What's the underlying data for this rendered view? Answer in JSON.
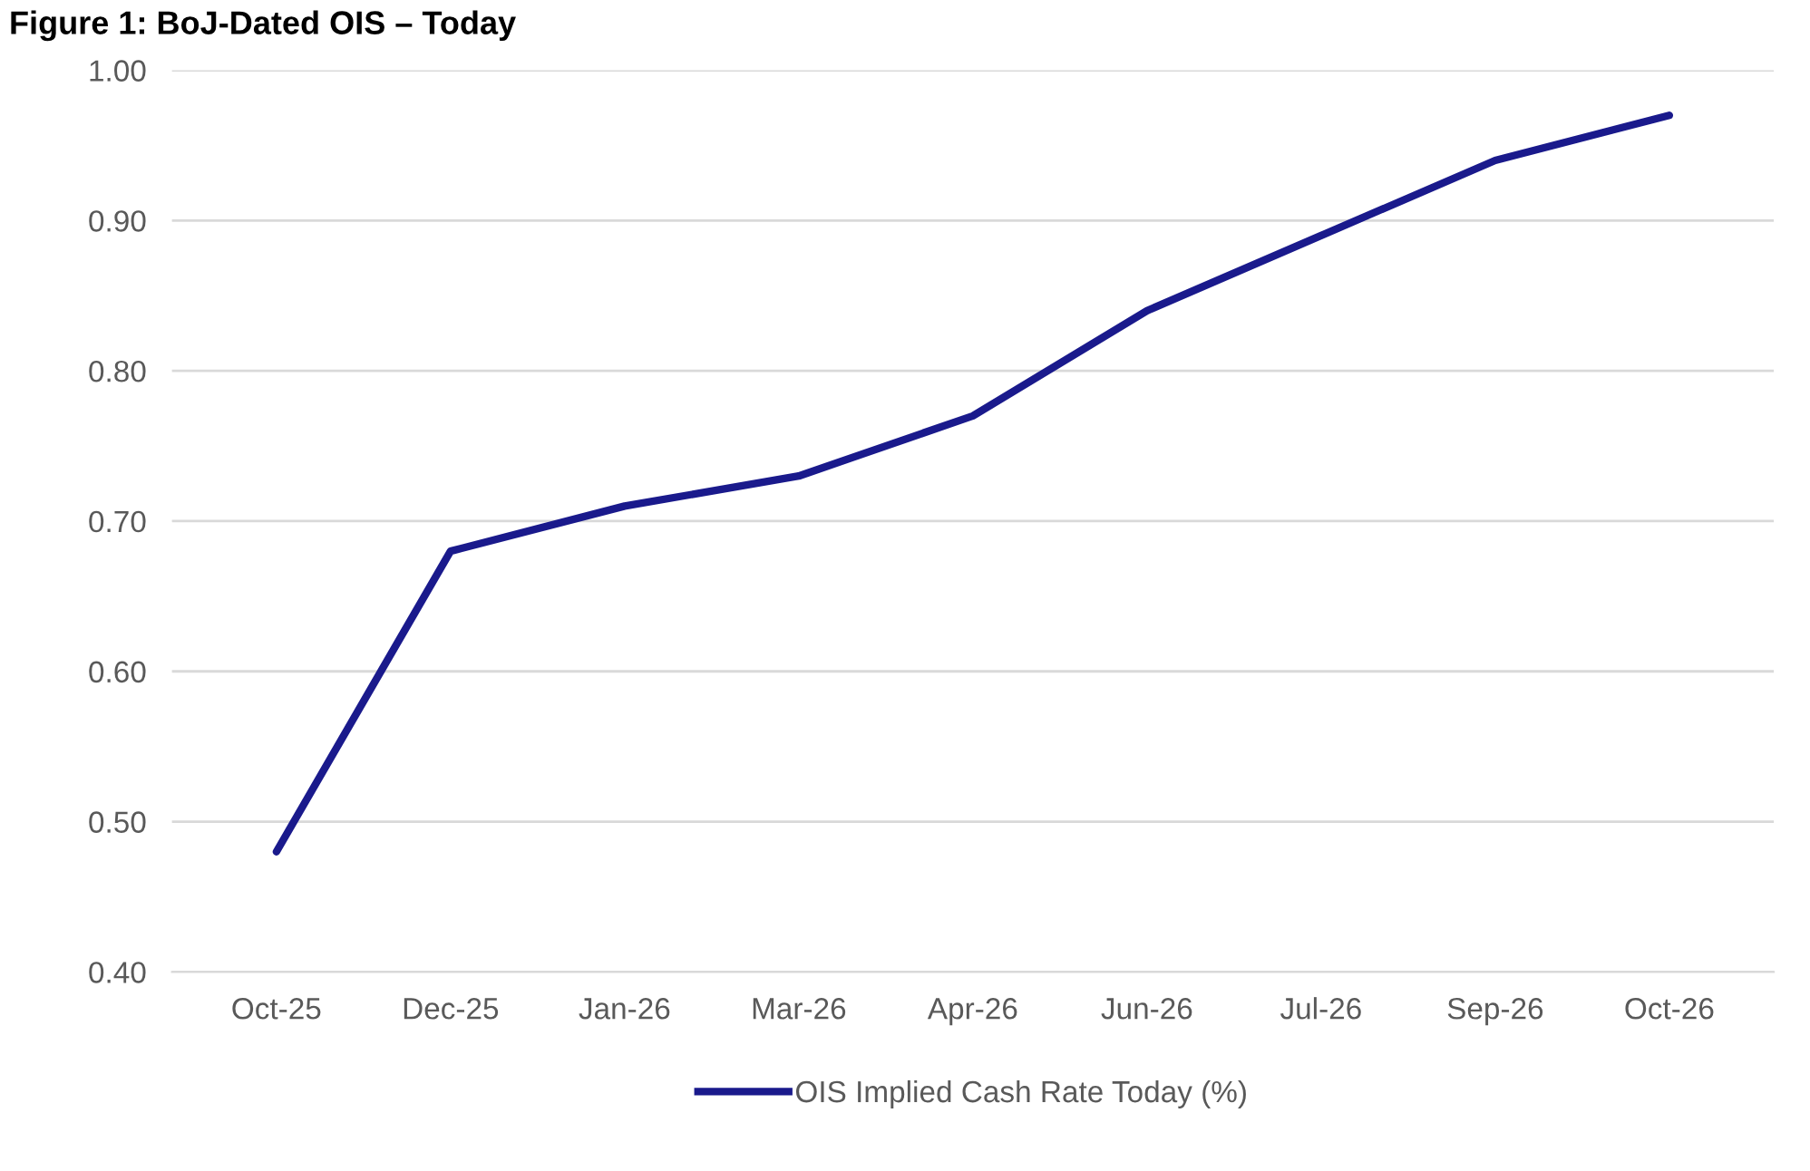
{
  "chart_data": {
    "type": "line",
    "title": "Figure 1: BoJ-Dated OIS – Today",
    "categories": [
      "Oct-25",
      "Dec-25",
      "Jan-26",
      "Mar-26",
      "Apr-26",
      "Jun-26",
      "Jul-26",
      "Sep-26",
      "Oct-26"
    ],
    "series": [
      {
        "name": "OIS Implied Cash Rate Today (%)",
        "color": "#1a1a8c",
        "values": [
          0.48,
          0.68,
          0.71,
          0.73,
          0.77,
          0.84,
          0.89,
          0.94,
          0.97
        ]
      }
    ],
    "ylim": [
      0.4,
      1.0
    ],
    "yticks": [
      {
        "value": 0.4,
        "label": "0.40"
      },
      {
        "value": 0.5,
        "label": "0.50"
      },
      {
        "value": 0.6,
        "label": "0.60"
      },
      {
        "value": 0.7,
        "label": "0.70"
      },
      {
        "value": 0.8,
        "label": "0.80"
      },
      {
        "value": 0.9,
        "label": "0.90"
      },
      {
        "value": 1.0,
        "label": "1.00"
      }
    ],
    "grid": "y",
    "legend": "bottom",
    "marker": "none",
    "line_style": "solid"
  }
}
